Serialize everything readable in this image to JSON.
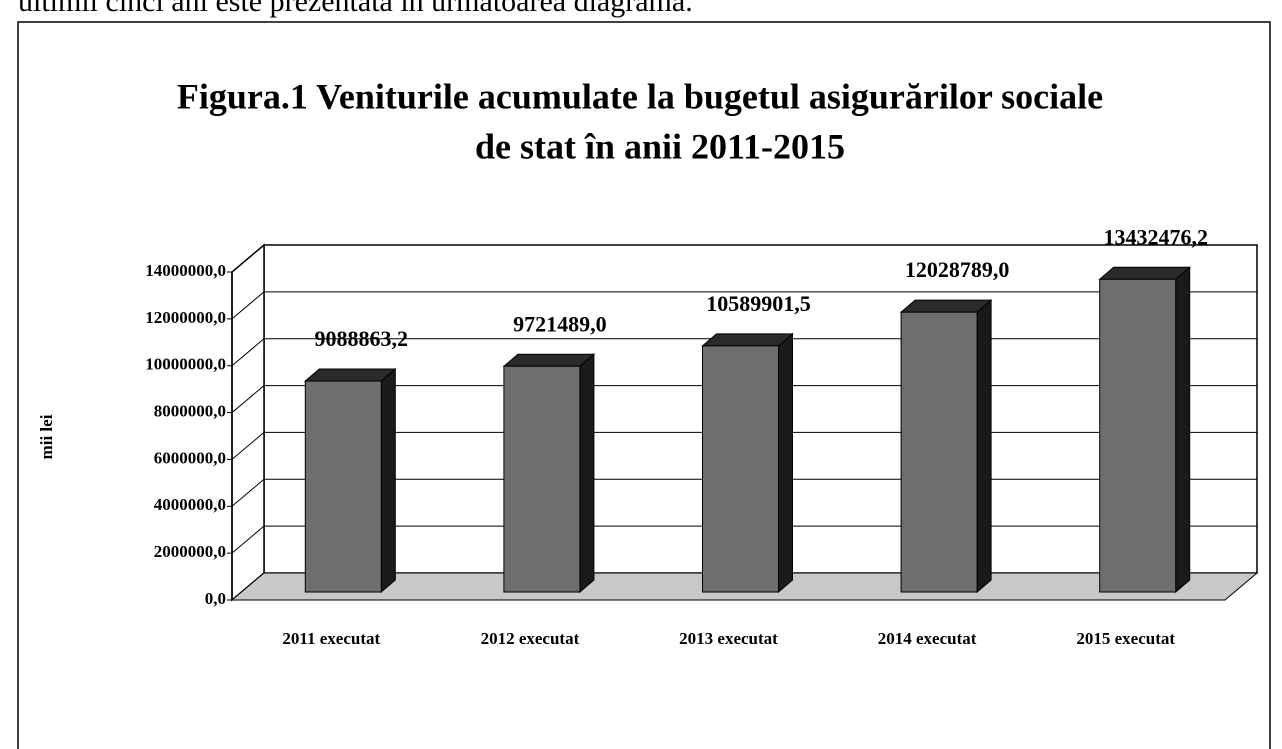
{
  "text_above": "ultimii cinci ani este prezentată în următoarea diagramă.",
  "chart_data": {
    "type": "bar3d",
    "title": "Figura.1 Veniturile acumulate la bugetul asigurărilor sociale",
    "subtitle": "de stat  în anii 2011-2015",
    "ylabel": "mii lei",
    "categories": [
      "2011 executat",
      "2012 executat",
      "2013 executat",
      "2014 executat",
      "2015 executat"
    ],
    "values": [
      9088863.2,
      9721489.0,
      10589901.5,
      12028789.0,
      13432476.2
    ],
    "value_labels": [
      "9088863,2",
      "9721489,0",
      "10589901,5",
      "12028789,0",
      "13432476,2"
    ],
    "color": "#6e6e6e",
    "ylim": [
      0,
      14000000
    ],
    "yticks": [
      {
        "value": 0,
        "label": "0,0"
      },
      {
        "value": 2000000,
        "label": "2000000,0"
      },
      {
        "value": 4000000,
        "label": "4000000,0"
      },
      {
        "value": 6000000,
        "label": "6000000,0"
      },
      {
        "value": 8000000,
        "label": "8000000,0"
      },
      {
        "value": 10000000,
        "label": "10000000,0"
      },
      {
        "value": 12000000,
        "label": "12000000,0"
      },
      {
        "value": 14000000,
        "label": "14000000,0"
      }
    ],
    "grid": true
  }
}
